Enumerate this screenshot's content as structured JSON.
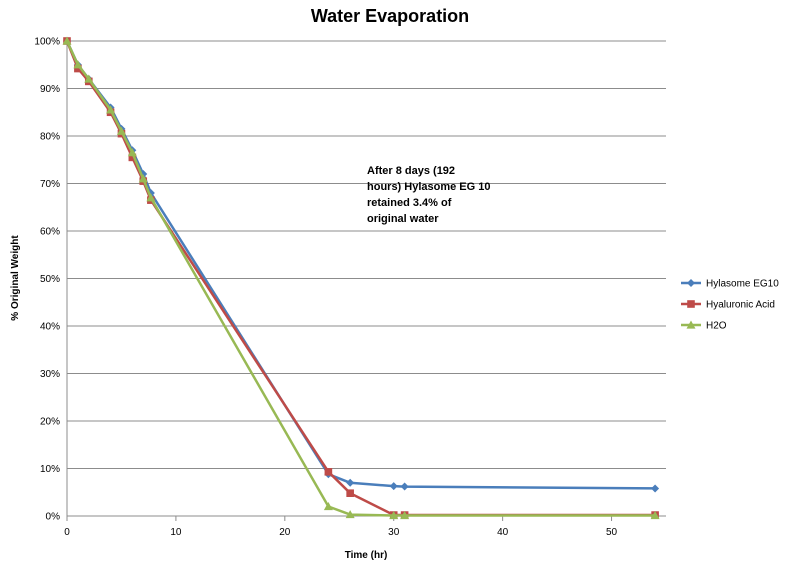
{
  "chart_data": {
    "type": "line",
    "title": "Water Evaporation",
    "xlabel": "Time (hr)",
    "ylabel": "% Original Weight",
    "xlim": [
      0,
      55
    ],
    "ylim": [
      0,
      100
    ],
    "x_ticks": [
      0,
      10,
      20,
      30,
      40,
      50
    ],
    "x_tick_labels": [
      "0",
      "10",
      "20",
      "30",
      "40",
      "50"
    ],
    "y_ticks": [
      0,
      10,
      20,
      30,
      40,
      50,
      60,
      70,
      80,
      90,
      100
    ],
    "y_tick_labels": [
      "0%",
      "10%",
      "20%",
      "30%",
      "40%",
      "50%",
      "60%",
      "70%",
      "80%",
      "90%",
      "100%"
    ],
    "grid": "horizontal",
    "legend_position": "right",
    "annotation_lines": [
      "After 8 days  (192",
      "hours) Hylasome EG 10",
      "retained 3.4% of",
      "original water"
    ],
    "series": [
      {
        "name": "Hylasome EG10",
        "color": "#4a7ebb",
        "marker": "diamond",
        "points": [
          [
            0,
            100
          ],
          [
            1,
            95
          ],
          [
            2,
            92
          ],
          [
            4,
            86
          ],
          [
            5,
            81.5
          ],
          [
            6,
            77
          ],
          [
            7,
            72
          ],
          [
            7.7,
            68
          ],
          [
            24,
            8.8
          ],
          [
            26,
            7
          ],
          [
            30,
            6.3
          ],
          [
            31,
            6.2
          ],
          [
            54,
            5.8
          ]
        ]
      },
      {
        "name": "Hyaluronic Acid",
        "color": "#be4b48",
        "marker": "square",
        "points": [
          [
            0,
            100
          ],
          [
            1,
            94.2
          ],
          [
            2,
            91.5
          ],
          [
            4,
            85
          ],
          [
            5,
            80.5
          ],
          [
            6,
            75.5
          ],
          [
            7,
            70.5
          ],
          [
            7.7,
            66.5
          ],
          [
            24,
            9.3
          ],
          [
            26,
            4.8
          ],
          [
            30,
            0.2
          ],
          [
            31,
            0.2
          ],
          [
            54,
            0.2
          ]
        ]
      },
      {
        "name": "H2O",
        "color": "#98b954",
        "marker": "triangle",
        "points": [
          [
            0,
            100
          ],
          [
            1,
            95
          ],
          [
            2,
            92
          ],
          [
            4,
            85.5
          ],
          [
            5,
            81
          ],
          [
            6,
            76.5
          ],
          [
            7,
            71
          ],
          [
            7.7,
            67
          ],
          [
            24,
            2
          ],
          [
            26,
            0.3
          ],
          [
            30,
            0.1
          ],
          [
            31,
            0.1
          ],
          [
            54,
            0.1
          ]
        ]
      }
    ]
  }
}
